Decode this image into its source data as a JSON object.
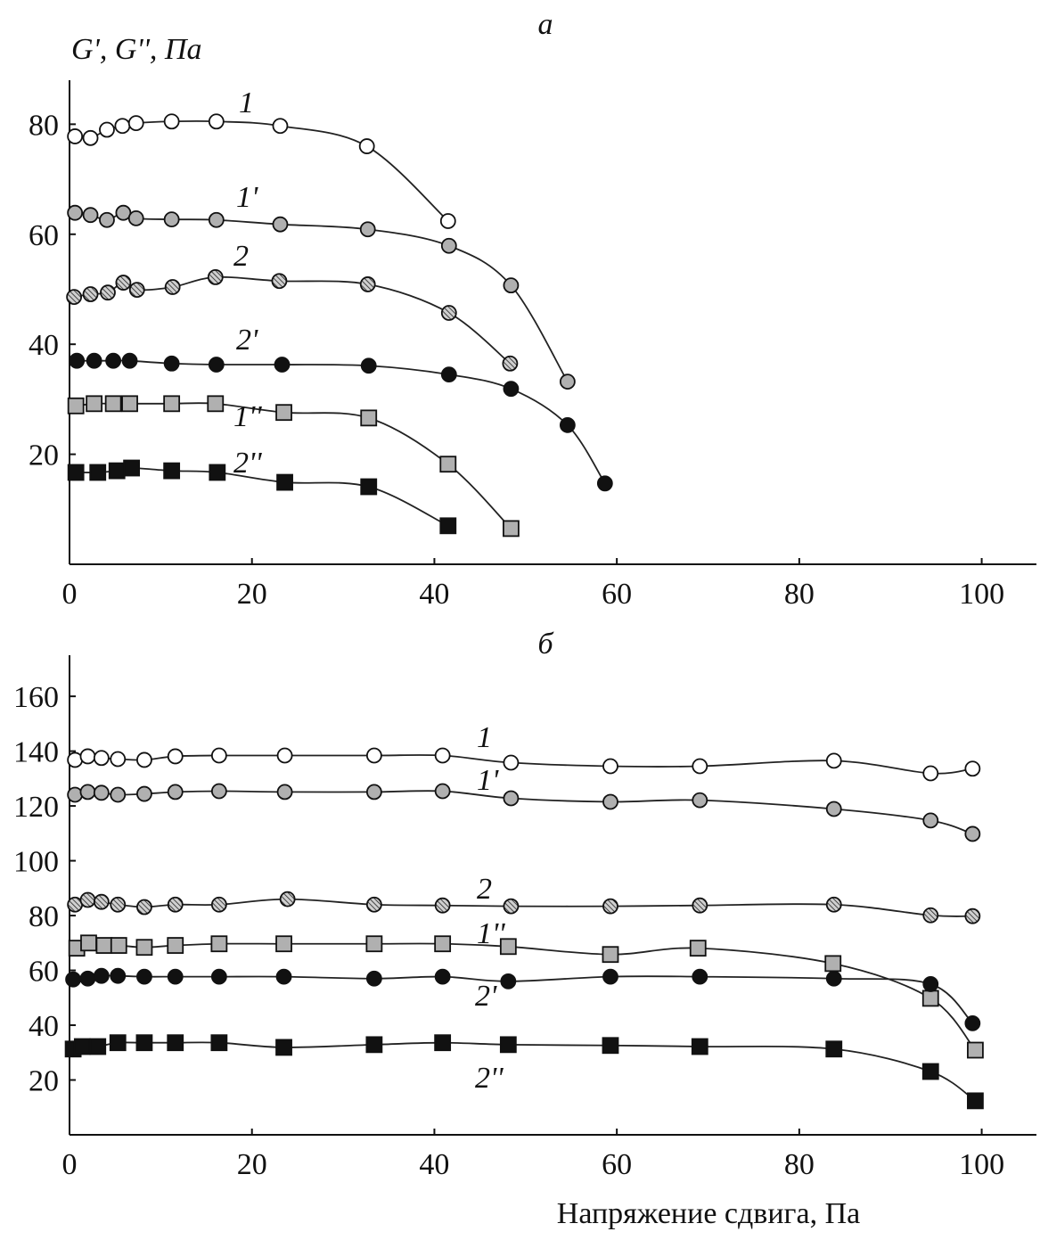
{
  "chart_data": [
    {
      "type": "scatter",
      "panel_label": "а",
      "ylabel": "G', G'', Па",
      "xlabel": "",
      "xlim": [
        0,
        106
      ],
      "ylim": [
        0,
        88
      ],
      "x_ticks": [
        0,
        20,
        40,
        60,
        80,
        100
      ],
      "y_ticks": [
        20,
        40,
        60,
        80
      ],
      "grid": false,
      "series": [
        {
          "name": "1",
          "marker": "open-circle",
          "x": [
            0.6,
            2.3,
            4.1,
            5.8,
            7.3,
            11.2,
            16.1,
            23.1,
            32.6,
            41.5
          ],
          "y": [
            77.8,
            77.5,
            79,
            79.7,
            80.2,
            80.5,
            80.5,
            79.7,
            76,
            62.4
          ]
        },
        {
          "name": "1'",
          "marker": "gray-circle",
          "x": [
            0.6,
            2.3,
            4.1,
            5.9,
            7.3,
            11.2,
            16.1,
            23.1,
            32.7,
            41.6,
            48.4,
            54.6
          ],
          "y": [
            63.9,
            63.5,
            62.6,
            63.9,
            62.9,
            62.7,
            62.6,
            61.8,
            60.9,
            57.9,
            50.7,
            33.2
          ]
        },
        {
          "name": "2",
          "marker": "hatched-circle",
          "x": [
            0.5,
            2.3,
            4.2,
            5.9,
            7.4,
            11.3,
            16,
            23,
            32.7,
            41.6,
            48.3
          ],
          "y": [
            48.6,
            49.1,
            49.4,
            51.2,
            49.9,
            50.4,
            52.2,
            51.5,
            50.9,
            45.7,
            36.5
          ]
        },
        {
          "name": "2'",
          "marker": "black-circle",
          "x": [
            0.8,
            2.7,
            4.8,
            6.6,
            11.2,
            16.1,
            23.3,
            32.8,
            41.6,
            48.4,
            54.6,
            58.7
          ],
          "y": [
            37,
            37,
            37,
            37,
            36.5,
            36.3,
            36.3,
            36.1,
            34.5,
            31.9,
            25.3,
            14.7
          ]
        },
        {
          "name": "1''",
          "marker": "gray-square",
          "x": [
            0.7,
            2.7,
            4.8,
            6.6,
            11.2,
            16,
            23.5,
            32.8,
            41.5,
            48.4
          ],
          "y": [
            28.8,
            29.2,
            29.2,
            29.2,
            29.2,
            29.2,
            27.6,
            26.6,
            18.2,
            6.5
          ]
        },
        {
          "name": "2''",
          "marker": "black-square",
          "x": [
            0.7,
            3.1,
            5.2,
            6.8,
            11.2,
            16.2,
            23.6,
            32.8,
            41.5
          ],
          "y": [
            16.7,
            16.7,
            17,
            17.5,
            17,
            16.7,
            14.9,
            14.1,
            7
          ]
        }
      ]
    },
    {
      "type": "scatter",
      "panel_label": "б",
      "ylabel": "",
      "xlabel": "Напряжение сдвига, Па",
      "xlim": [
        0,
        106
      ],
      "ylim": [
        0,
        175
      ],
      "x_ticks": [
        0,
        20,
        40,
        60,
        80,
        100
      ],
      "y_ticks": [
        20,
        40,
        60,
        80,
        100,
        120,
        140,
        160
      ],
      "grid": false,
      "series": [
        {
          "name": "1",
          "marker": "open-circle",
          "x": [
            0.6,
            2,
            3.5,
            5.3,
            8.2,
            11.6,
            16.4,
            23.6,
            33.4,
            40.9,
            48.4,
            59.3,
            69.1,
            83.8,
            94.4,
            99
          ],
          "y": [
            136.8,
            138.1,
            137.5,
            137.1,
            136.8,
            138.1,
            138.4,
            138.4,
            138.4,
            138.4,
            135.8,
            134.5,
            134.5,
            136.5,
            131.9,
            133.6
          ]
        },
        {
          "name": "1'",
          "marker": "gray-circle",
          "x": [
            0.6,
            2,
            3.5,
            5.3,
            8.2,
            11.6,
            16.4,
            23.6,
            33.4,
            40.9,
            48.4,
            59.3,
            69.1,
            83.8,
            94.4,
            99
          ],
          "y": [
            124.1,
            125.1,
            124.8,
            124.1,
            124.4,
            125.1,
            125.4,
            125.1,
            125.1,
            125.4,
            122.8,
            121.5,
            122.1,
            118.9,
            114.7,
            109.8
          ]
        },
        {
          "name": "2",
          "marker": "hatched-circle",
          "x": [
            0.6,
            2,
            3.5,
            5.3,
            8.2,
            11.6,
            16.4,
            23.9,
            33.4,
            40.9,
            48.4,
            59.3,
            69.1,
            83.8,
            94.4,
            99
          ],
          "y": [
            84,
            85.7,
            85,
            84,
            83.1,
            84,
            84,
            86,
            84,
            83.7,
            83.4,
            83.4,
            83.7,
            84,
            80.1,
            79.8
          ]
        },
        {
          "name": "1''",
          "marker": "gray-square",
          "x": [
            0.8,
            2.1,
            3.8,
            5.4,
            8.2,
            11.6,
            16.4,
            23.5,
            33.4,
            40.9,
            48.1,
            59.3,
            68.9,
            83.7,
            94.4,
            99.3
          ],
          "y": [
            68.1,
            70,
            69.1,
            69.1,
            68.4,
            69.1,
            69.7,
            69.7,
            69.7,
            69.7,
            68.7,
            65.8,
            68.1,
            62.5,
            49.8,
            30.9
          ]
        },
        {
          "name": "2'",
          "marker": "black-circle",
          "x": [
            0.4,
            2,
            3.5,
            5.3,
            8.2,
            11.6,
            16.4,
            23.5,
            33.4,
            40.9,
            48.1,
            59.3,
            69.1,
            83.8,
            94.4,
            99
          ],
          "y": [
            56.7,
            57,
            58,
            58,
            57.7,
            57.7,
            57.7,
            57.7,
            57,
            57.7,
            56,
            57.7,
            57.7,
            57,
            55,
            40.7
          ]
        },
        {
          "name": "2''",
          "marker": "black-square",
          "x": [
            0.4,
            1.4,
            3.1,
            5.3,
            8.2,
            11.6,
            16.4,
            23.5,
            33.4,
            40.9,
            48.1,
            59.3,
            69.1,
            83.8,
            94.4,
            99.3
          ],
          "y": [
            31.3,
            32.2,
            32.2,
            33.6,
            33.6,
            33.6,
            33.6,
            31.9,
            32.9,
            33.6,
            32.9,
            32.6,
            32.2,
            31.3,
            23.1,
            12.4
          ]
        }
      ]
    }
  ],
  "colors": {
    "axis": "#111111",
    "gray_fill": "#b0b0b0",
    "black_fill": "#111111",
    "open_fill": "#ffffff"
  }
}
